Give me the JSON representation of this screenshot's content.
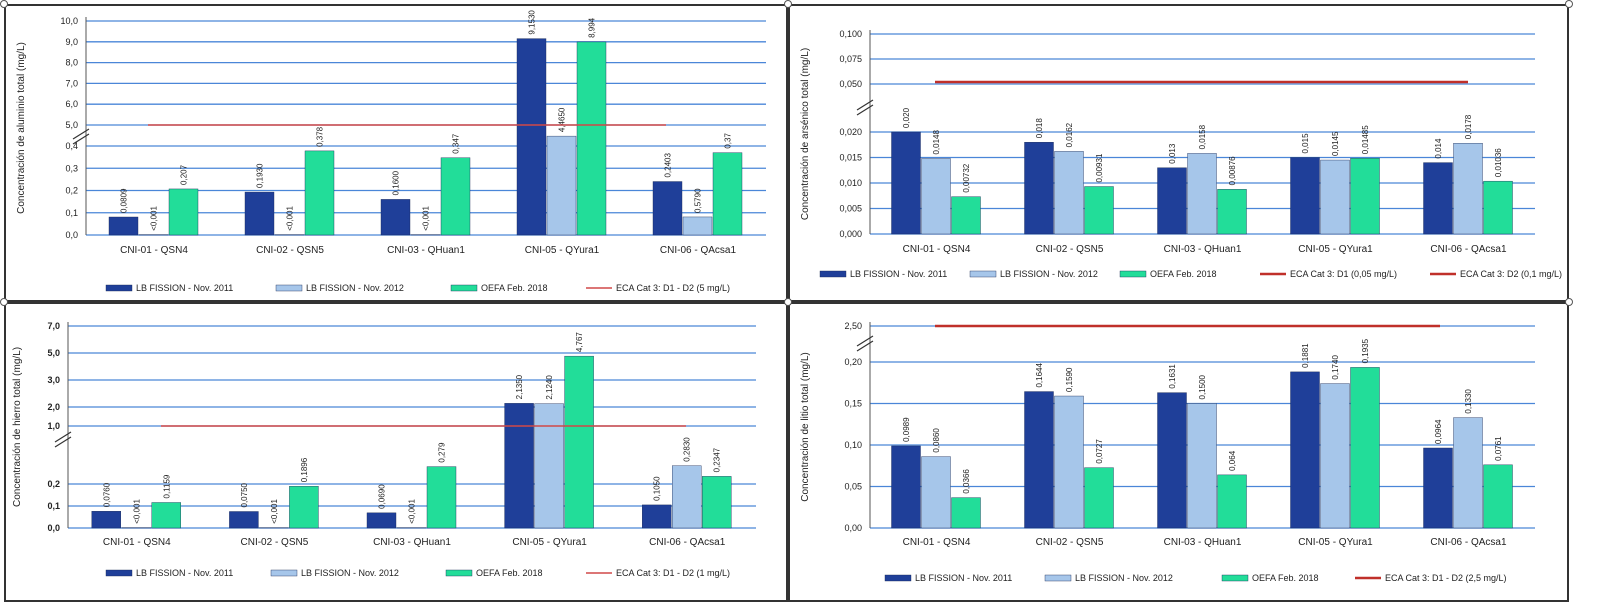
{
  "chart_data": [
    {
      "type": "bar",
      "ylabel": "Concentración de aluminio total (mg/L)",
      "categories": [
        "CNI-01 - QSN4",
        "CNI-02 - QSN5",
        "CNI-03 - QHuan1",
        "CNI-05 - QYura1",
        "CNI-06 - QAcsa1"
      ],
      "lower_ticks": [
        "0,0",
        "0,1",
        "0,2",
        "0,3",
        "0,4"
      ],
      "lower_range": [
        0,
        0.4
      ],
      "upper_ticks": [
        "5,0",
        "6,0",
        "7,0",
        "8,0",
        "9,0",
        "10,0"
      ],
      "upper_range": [
        5,
        10
      ],
      "series": [
        {
          "name": "LB FISSION - Nov. 2011",
          "color": "#1F3F99",
          "values": [
            0.0809,
            0.193,
            0.16,
            9.153,
            0.2403
          ],
          "labels": [
            "0,0809",
            "0,1930",
            "0,1600",
            "9,1530",
            "0,2403"
          ]
        },
        {
          "name": "LB FISSION - Nov. 2012",
          "color": "#A6C6EA",
          "values": [
            0.001,
            0.001,
            0.001,
            4.465,
            0.579
          ],
          "labels": [
            "<0,001",
            "<0,001",
            "<0,001",
            "4,4650",
            "0,5790"
          ]
        },
        {
          "name": "OEFA Feb. 2018",
          "color": "#22DD99",
          "values": [
            0.207,
            0.378,
            0.347,
            8.994,
            0.37
          ],
          "labels": [
            "0,207",
            "0,378",
            "0,347",
            "8,994",
            "0,37"
          ]
        }
      ],
      "reference": {
        "name": "ECA Cat 3: D1 - D2 (5 mg/L)",
        "value": 5,
        "color": "#D04848",
        "style": "thin"
      }
    },
    {
      "type": "bar",
      "ylabel": "Concentración de arsénico total (mg/L)",
      "categories": [
        "CNI-01 - QSN4",
        "CNI-02 - QSN5",
        "CNI-03 - QHuan1",
        "CNI-05 - QYura1",
        "CNI-06 - QAcsa1"
      ],
      "lower_ticks": [
        "0,000",
        "0,005",
        "0,010",
        "0,015",
        "0,020"
      ],
      "lower_range": [
        0,
        0.02
      ],
      "upper_ticks": [
        "0,050",
        "0,075",
        "0,100"
      ],
      "upper_range": [
        0.05,
        0.1
      ],
      "series": [
        {
          "name": "LB FISSION - Nov. 2011",
          "color": "#1F3F99",
          "values": [
            0.02,
            0.018,
            0.013,
            0.015,
            0.014
          ],
          "labels": [
            "0,020",
            "0,018",
            "0,013",
            "0,015",
            "0,014"
          ]
        },
        {
          "name": "LB FISSION - Nov. 2012",
          "color": "#A6C6EA",
          "values": [
            0.0148,
            0.0162,
            0.0158,
            0.0145,
            0.0178
          ],
          "labels": [
            "0,0148",
            "0,0162",
            "0,0158",
            "0,0145",
            "0,0178"
          ]
        },
        {
          "name": "OEFA Feb. 2018",
          "color": "#22DD99",
          "values": [
            0.00732,
            0.00931,
            0.00876,
            0.01485,
            0.01036
          ],
          "labels": [
            "0,00732",
            "0,00931",
            "0,00876",
            "0,01485",
            "0,01036"
          ]
        }
      ],
      "reference": {
        "name": "ECA Cat 3: D1 (0,05 mg/L)",
        "value": 0.052,
        "color": "#C0302A",
        "style": "thick"
      },
      "reference_extra": {
        "name": "ECA Cat 3: D2 (0,1 mg/L)",
        "color": "#C0302A"
      }
    },
    {
      "type": "bar",
      "ylabel": "Concentración de hierro total (mg/L)",
      "categories": [
        "CNI-01 - QSN4",
        "CNI-02 - QSN5",
        "CNI-03 - QHuan1",
        "CNI-05 - QYura1",
        "CNI-06 - QAcsa1"
      ],
      "lower_ticks": [
        "0,0",
        "0,1",
        "0,2"
      ],
      "lower_range": [
        0,
        0.3
      ],
      "upper_ticks": [
        "1,0",
        "2,0",
        "3,0",
        "5,0",
        "7,0"
      ],
      "upper_ticks_note": "irregular scale",
      "series": [
        {
          "name": "LB FISSION - Nov. 2011",
          "color": "#1F3F99",
          "values": [
            0.076,
            0.075,
            0.069,
            2.135,
            0.105
          ],
          "labels": [
            "0,0760",
            "0,0750",
            "0,0690",
            "2,1350",
            "0,1050"
          ]
        },
        {
          "name": "LB FISSION - Nov. 2012",
          "color": "#A6C6EA",
          "values": [
            0.001,
            0.001,
            0.001,
            2.124,
            0.283
          ],
          "labels": [
            "<0,001",
            "<0,001",
            "<0,001",
            "2,1240",
            "0,2830"
          ]
        },
        {
          "name": "OEFA Feb. 2018",
          "color": "#22DD99",
          "values": [
            0.1159,
            0.1896,
            0.279,
            4.767,
            0.2347
          ],
          "labels": [
            "0,1159",
            "0,1896",
            "0,279",
            "4,767",
            "0,2347"
          ]
        }
      ],
      "reference": {
        "name": "ECA Cat 3: D1 - D2 (1 mg/L)",
        "value": 1,
        "color": "#D04848",
        "style": "thin"
      }
    },
    {
      "type": "bar",
      "ylabel": "Concentración de litio total (mg/L)",
      "categories": [
        "CNI-01 - QSN4",
        "CNI-02 - QSN5",
        "CNI-03 - QHuan1",
        "CNI-05 - QYura1",
        "CNI-06 - QAcsa1"
      ],
      "lower_ticks": [
        "0,00",
        "0,05",
        "0,10",
        "0,15",
        "0,20"
      ],
      "lower_range": [
        0,
        0.2
      ],
      "upper_ticks": [
        "2,50"
      ],
      "series": [
        {
          "name": "LB FISSION - Nov. 2011",
          "color": "#1F3F99",
          "values": [
            0.0989,
            0.1644,
            0.1631,
            0.1881,
            0.0964
          ],
          "labels": [
            "0,0989",
            "0,1644",
            "0,1631",
            "0,1881",
            "0,0964"
          ]
        },
        {
          "name": "LB FISSION - Nov. 2012",
          "color": "#A6C6EA",
          "values": [
            0.086,
            0.159,
            0.15,
            0.174,
            0.133
          ],
          "labels": [
            "0,0860",
            "0,1590",
            "0,1500",
            "0,1740",
            "0,1330"
          ]
        },
        {
          "name": "OEFA Feb. 2018",
          "color": "#22DD99",
          "values": [
            0.0366,
            0.0727,
            0.064,
            0.1935,
            0.0761
          ],
          "labels": [
            "0,0366",
            "0,0727",
            "0,064",
            "0,1935",
            "0,0761"
          ]
        }
      ],
      "reference": {
        "name": "ECA Cat 3: D1 - D2 (2,5 mg/L)",
        "value": 2.5,
        "color": "#C0302A",
        "style": "thick"
      }
    }
  ]
}
